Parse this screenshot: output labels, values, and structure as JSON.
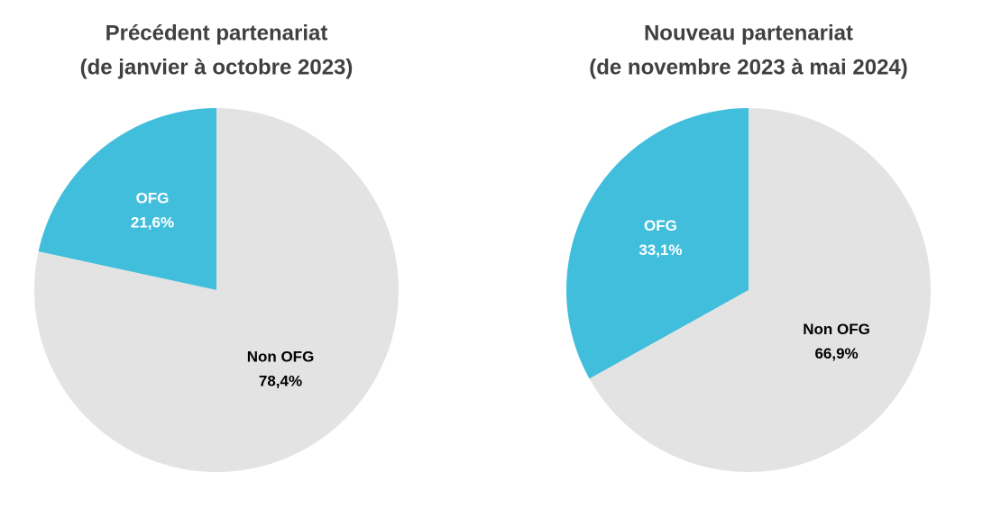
{
  "chart_data": [
    {
      "type": "pie",
      "title": "Précédent partenariat",
      "subtitle": "(de janvier à octobre 2023)",
      "categories": [
        "OFG",
        "Non OFG"
      ],
      "values": [
        21.6,
        78.4
      ],
      "value_labels": [
        "21,6%",
        "78,4%"
      ],
      "colors": [
        "#41bedc",
        "#e3e3e3"
      ],
      "label_colors": [
        "#ffffff",
        "#000000"
      ]
    },
    {
      "type": "pie",
      "title": "Nouveau partenariat",
      "subtitle": "(de novembre 2023 à mai 2024)",
      "categories": [
        "OFG",
        "Non OFG"
      ],
      "values": [
        33.1,
        66.9
      ],
      "value_labels": [
        "33,1%",
        "66,9%"
      ],
      "colors": [
        "#41bedc",
        "#e3e3e3"
      ],
      "label_colors": [
        "#ffffff",
        "#000000"
      ]
    }
  ]
}
